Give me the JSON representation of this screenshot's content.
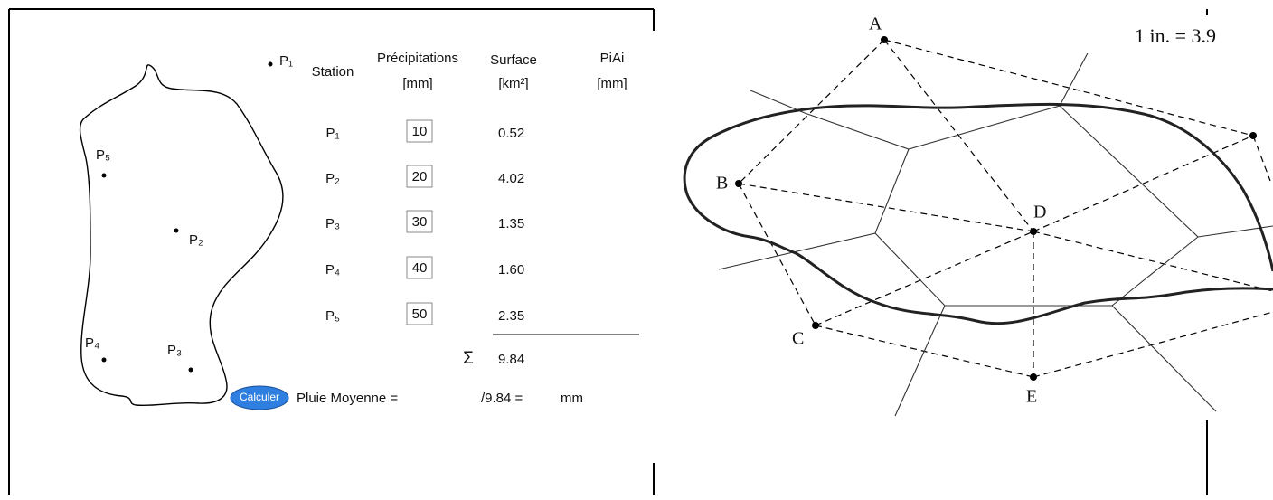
{
  "map": {
    "labels": [
      "P₁",
      "P₅",
      "P₂",
      "P₄",
      "P₃"
    ]
  },
  "table": {
    "headers": [
      [
        "Station"
      ],
      [
        "Précipitations",
        "[mm]"
      ],
      [
        "Surface",
        "[km²]"
      ],
      [
        "PiAi",
        "[mm]"
      ]
    ],
    "rows": [
      [
        "P₁",
        "10",
        "0.52"
      ],
      [
        "P₂",
        "20",
        "4.02"
      ],
      [
        "P₃",
        "30",
        "1.35"
      ],
      [
        "P₄",
        "40",
        "1.60"
      ],
      [
        "P₅",
        "50",
        "2.35"
      ]
    ],
    "sum_symbol": "Σ",
    "sum": "9.84"
  },
  "result": {
    "button": "Calculer",
    "label": "Pluie Moyenne =",
    "divisor": "/9.84 =",
    "unit": "mm"
  },
  "diagram": {
    "points": [
      "A",
      "B",
      "C",
      "D",
      "E"
    ],
    "scale": "1 in. = 3.9"
  }
}
